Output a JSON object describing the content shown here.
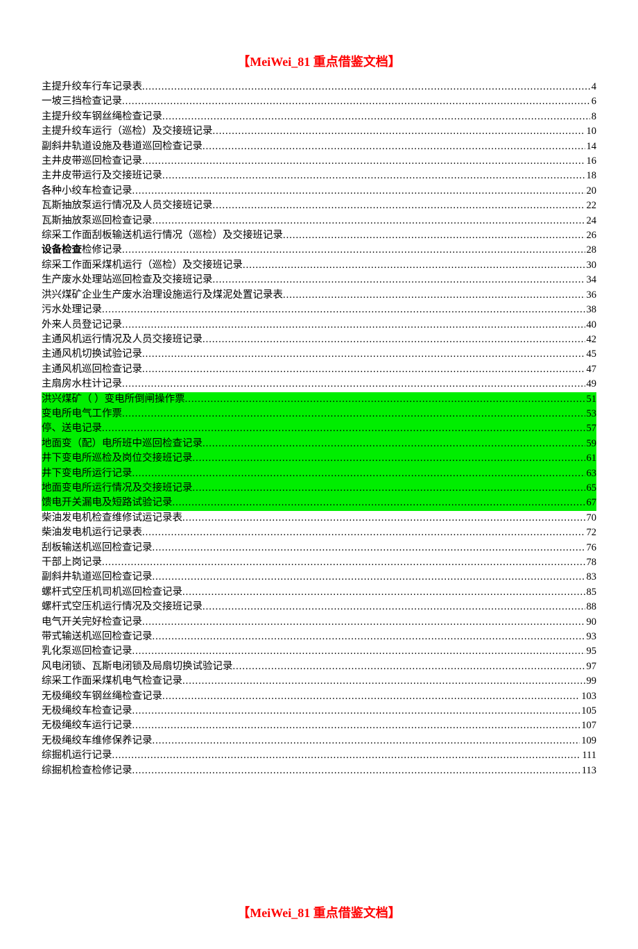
{
  "header_text": "【MeiWei_81 重点借鉴文档】",
  "footer_text": "【MeiWei_81 重点借鉴文档】",
  "highlight_color": "#00ee00",
  "header_color": "#ff0000",
  "toc": [
    {
      "label": "主提升绞车行车记录表",
      "page": "4",
      "highlight": false,
      "bold_prefix": null
    },
    {
      "label": "一坡三挡检查记录",
      "page": "6",
      "highlight": false,
      "bold_prefix": null
    },
    {
      "label": "主提升绞车钢丝绳检查记录",
      "page": "8",
      "highlight": false,
      "bold_prefix": null
    },
    {
      "label": "主提升绞车运行（巡检）及交接班记录",
      "page": "10",
      "highlight": false,
      "bold_prefix": null
    },
    {
      "label": "副斜井轨道设施及巷道巡回检查记录",
      "page": "14",
      "highlight": false,
      "bold_prefix": null
    },
    {
      "label": "主井皮带巡回检查记录",
      "page": "16",
      "highlight": false,
      "bold_prefix": null
    },
    {
      "label": "主井皮带运行及交接班记录",
      "page": "18",
      "highlight": false,
      "bold_prefix": null
    },
    {
      "label": "各种小绞车检查记录",
      "page": "20",
      "highlight": false,
      "bold_prefix": null
    },
    {
      "label": "瓦斯抽放泵运行情况及人员交接班记录",
      "page": "22",
      "highlight": false,
      "bold_prefix": null
    },
    {
      "label": "瓦斯抽放泵巡回检查记录",
      "page": "24",
      "highlight": false,
      "bold_prefix": null
    },
    {
      "label": "综采工作面刮板输送机运行情况（巡检）及交接班记录",
      "page": "26",
      "highlight": false,
      "bold_prefix": null
    },
    {
      "label": "检修记录",
      "page": "28",
      "highlight": false,
      "bold_prefix": "设备检查"
    },
    {
      "label": "综采工作面采煤机运行（巡检）及交接班记录",
      "page": "30",
      "highlight": false,
      "bold_prefix": null
    },
    {
      "label": "生产废水处理站巡回检查及交接班记录",
      "page": "34",
      "highlight": false,
      "bold_prefix": null
    },
    {
      "label": "洪兴煤矿企业生产废水治理设施运行及煤泥处置记录表",
      "page": "36",
      "highlight": false,
      "bold_prefix": null
    },
    {
      "label": "污水处理记录",
      "page": "38",
      "highlight": false,
      "bold_prefix": null
    },
    {
      "label": "外来人员登记记录",
      "page": "40",
      "highlight": false,
      "bold_prefix": null
    },
    {
      "label": "主通风机运行情况及人员交接班记录",
      "page": "42",
      "highlight": false,
      "bold_prefix": null
    },
    {
      "label": "主通风机切换试验记录",
      "page": "45",
      "highlight": false,
      "bold_prefix": null
    },
    {
      "label": "主通风机巡回检查记录",
      "page": "47",
      "highlight": false,
      "bold_prefix": null
    },
    {
      "label": "主扇房水柱计记录",
      "page": "49",
      "highlight": false,
      "bold_prefix": null
    },
    {
      "label": "洪兴煤矿（ ）变电所倒闸操作票",
      "page": "51",
      "highlight": true,
      "bold_prefix": null
    },
    {
      "label": "变电所电气工作票",
      "page": "53",
      "highlight": true,
      "bold_prefix": null
    },
    {
      "label": "停、送电记录",
      "page": "57",
      "highlight": true,
      "bold_prefix": null
    },
    {
      "label": "地面变（配）电所班中巡回检查记录",
      "page": "59",
      "highlight": true,
      "bold_prefix": null
    },
    {
      "label": "井下变电所巡检及岗位交接班记录",
      "page": "61",
      "highlight": true,
      "bold_prefix": null
    },
    {
      "label": "井下变电所运行记录",
      "page": "63",
      "highlight": true,
      "bold_prefix": null
    },
    {
      "label": "地面变电所运行情况及交接班记录",
      "page": "65",
      "highlight": true,
      "bold_prefix": null
    },
    {
      "label": "馈电开关漏电及短路试验记录",
      "page": "67",
      "highlight": true,
      "bold_prefix": null
    },
    {
      "label": "柴油发电机检查维修试运记录表",
      "page": "70",
      "highlight": false,
      "bold_prefix": null
    },
    {
      "label": "柴油发电机运行记录表",
      "page": "72",
      "highlight": false,
      "bold_prefix": null
    },
    {
      "label": "刮板输送机巡回检查记录",
      "page": "76",
      "highlight": false,
      "bold_prefix": null
    },
    {
      "label": "干部上岗记录",
      "page": "78",
      "highlight": false,
      "bold_prefix": null
    },
    {
      "label": "副斜井轨道巡回检查记录",
      "page": "83",
      "highlight": false,
      "bold_prefix": null
    },
    {
      "label": "螺杆式空压机司机巡回检查记录",
      "page": "85",
      "highlight": false,
      "bold_prefix": null
    },
    {
      "label": "螺杆式空压机运行情况及交接班记录",
      "page": "88",
      "highlight": false,
      "bold_prefix": null
    },
    {
      "label": "电气开关完好检查记录",
      "page": "90",
      "highlight": false,
      "bold_prefix": null
    },
    {
      "label": "带式输送机巡回检查记录",
      "page": "93",
      "highlight": false,
      "bold_prefix": null
    },
    {
      "label": "乳化泵巡回检查记录",
      "page": "95",
      "highlight": false,
      "bold_prefix": null
    },
    {
      "label": "风电闭锁、瓦斯电闭锁及局扇切换试验记录",
      "page": "97",
      "highlight": false,
      "bold_prefix": null
    },
    {
      "label": "综采工作面采煤机电气检查记录",
      "page": "99",
      "highlight": false,
      "bold_prefix": null
    },
    {
      "label": "无极绳绞车钢丝绳检查记录",
      "page": "103",
      "highlight": false,
      "bold_prefix": null
    },
    {
      "label": "无极绳绞车检查记录",
      "page": "105",
      "highlight": false,
      "bold_prefix": null
    },
    {
      "label": "无极绳绞车运行记录",
      "page": "107",
      "highlight": false,
      "bold_prefix": null
    },
    {
      "label": "无极绳绞车维修保养记录",
      "page": "109",
      "highlight": false,
      "bold_prefix": null
    },
    {
      "label": "综掘机运行记录",
      "page": "111",
      "highlight": false,
      "bold_prefix": null
    },
    {
      "label": "综掘机检查检修记录",
      "page": "113",
      "highlight": false,
      "bold_prefix": null
    }
  ]
}
